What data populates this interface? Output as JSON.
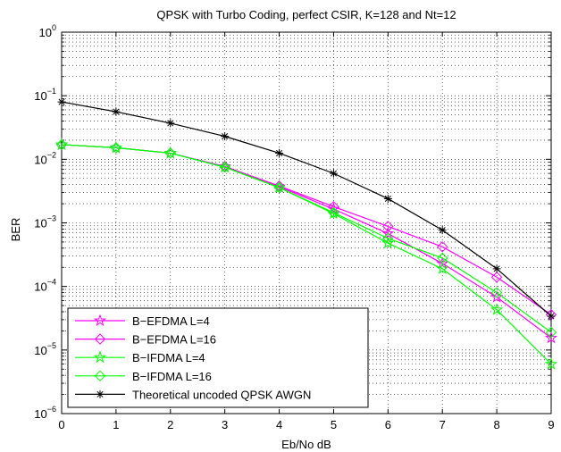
{
  "chart_data": {
    "type": "line",
    "title": "QPSK with Turbo Coding, perfect CSIR, K=128 and Nt=12",
    "xlabel": "Eb/No  dB",
    "ylabel": "BER",
    "xlim": [
      0,
      9
    ],
    "ylim": [
      1e-06,
      1
    ],
    "yscale": "log",
    "grid": true,
    "legend_position": "bottom-left",
    "x_ticks": [
      "0",
      "1",
      "2",
      "3",
      "4",
      "5",
      "6",
      "7",
      "8",
      "9"
    ],
    "y_ticks": [
      {
        "base": "10",
        "exp": "0"
      },
      {
        "base": "10",
        "exp": "−1"
      },
      {
        "base": "10",
        "exp": "−2"
      },
      {
        "base": "10",
        "exp": "−3"
      },
      {
        "base": "10",
        "exp": "−4"
      },
      {
        "base": "10",
        "exp": "−5"
      },
      {
        "base": "10",
        "exp": "−6"
      }
    ],
    "x": [
      0,
      1,
      2,
      3,
      4,
      5,
      6,
      7,
      8,
      9
    ],
    "series": [
      {
        "name": "B−EFDMA L=4",
        "color": "#ff00ff",
        "marker": "star",
        "values": [
          0.017,
          0.0152,
          0.0125,
          0.0077,
          0.0037,
          0.00165,
          0.00068,
          0.00023,
          6.8e-05,
          1.55e-05
        ]
      },
      {
        "name": "B−EFDMA L=16",
        "color": "#ff00ff",
        "marker": "diamond",
        "values": [
          0.017,
          0.0152,
          0.0125,
          0.0077,
          0.0038,
          0.0018,
          0.00088,
          0.00042,
          0.00014,
          3.6e-05
        ]
      },
      {
        "name": "B−IFDMA L=4",
        "color": "#00ff00",
        "marker": "star",
        "values": [
          0.017,
          0.0152,
          0.0125,
          0.0075,
          0.0036,
          0.0014,
          0.00048,
          0.00019,
          4.3e-05,
          6e-06
        ]
      },
      {
        "name": "B−IFDMA L=16",
        "color": "#00ff00",
        "marker": "diamond",
        "values": [
          0.017,
          0.0152,
          0.0125,
          0.0075,
          0.0036,
          0.00145,
          0.00057,
          0.00028,
          8e-05,
          1.9e-05
        ]
      },
      {
        "name": "Theoretical uncoded QPSK AWGN",
        "color": "#000000",
        "marker": "asterisk",
        "values": [
          0.08,
          0.056,
          0.037,
          0.023,
          0.0125,
          0.006,
          0.0024,
          0.00077,
          0.00019,
          3.4e-05
        ]
      }
    ]
  }
}
